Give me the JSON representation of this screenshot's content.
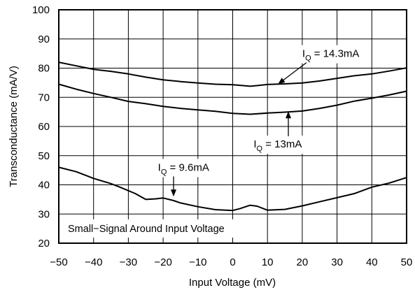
{
  "chart_data": {
    "type": "line",
    "title": "",
    "xlabel": "Input Voltage (mV)",
    "ylabel": "Transconductance (mA/V)",
    "xlim": [
      -50,
      50
    ],
    "ylim": [
      20,
      100
    ],
    "xticks": [
      -50,
      -40,
      -30,
      -20,
      -10,
      0,
      10,
      20,
      30,
      40,
      50
    ],
    "yticks": [
      20,
      30,
      40,
      50,
      60,
      70,
      80,
      90,
      100
    ],
    "grid": true,
    "legend": "none",
    "annotation": "Small−Signal Around Input Voltage",
    "series": [
      {
        "name": "IQ = 14.3mA",
        "color": "#000000",
        "x": [
          -50,
          -45,
          -40,
          -35,
          -30,
          -25,
          -20,
          -15,
          -10,
          -5,
          0,
          3,
          5,
          7,
          10,
          15,
          20,
          25,
          30,
          35,
          40,
          45,
          50
        ],
        "y": [
          82,
          80.8,
          79.6,
          78.9,
          78,
          76.9,
          76,
          75.4,
          74.9,
          74.5,
          74.3,
          74,
          73.8,
          74,
          74.4,
          74.6,
          74.9,
          75.6,
          76.5,
          77.4,
          78,
          79,
          80.1
        ]
      },
      {
        "name": "IQ = 13mA",
        "color": "#000000",
        "x": [
          -50,
          -45,
          -40,
          -35,
          -30,
          -25,
          -20,
          -15,
          -10,
          -5,
          0,
          5,
          10,
          15,
          20,
          25,
          30,
          35,
          40,
          45,
          50
        ],
        "y": [
          74.5,
          72.8,
          71.3,
          70,
          68.6,
          67.8,
          66.9,
          66.2,
          65.7,
          65.2,
          64.5,
          64.2,
          64.6,
          64.9,
          65.3,
          66.2,
          67.3,
          68.7,
          69.7,
          70.8,
          72.1
        ]
      },
      {
        "name": "IQ = 9.6mA",
        "color": "#000000",
        "x": [
          -50,
          -45,
          -40,
          -35,
          -32,
          -28,
          -25,
          -22,
          -20,
          -17,
          -15,
          -10,
          -5,
          0,
          2,
          5,
          7,
          10,
          15,
          20,
          25,
          30,
          35,
          40,
          45,
          50
        ],
        "y": [
          46,
          44.5,
          42.2,
          40.4,
          39,
          37,
          35,
          35.2,
          35.5,
          34.6,
          33.8,
          32.5,
          31.5,
          31.2,
          31.8,
          33,
          32.7,
          31.3,
          31.6,
          32.8,
          34.2,
          35.6,
          37,
          39.2,
          40.6,
          42.5
        ]
      }
    ],
    "labels": [
      {
        "prefix": "I",
        "sub": "Q",
        "suffix": " = 14.3mA",
        "x": 20,
        "y": 83.8,
        "target_x": 13,
        "target_y": 74.5
      },
      {
        "prefix": "I",
        "sub": "Q",
        "suffix": " = 13mA",
        "x": 6,
        "y": 52.8,
        "target_x": 16,
        "target_y": 65.2
      },
      {
        "prefix": "I",
        "sub": "Q",
        "suffix": " = 9.6mA",
        "x": -21.5,
        "y": 44.8,
        "target_x": -17,
        "target_y": 36
      }
    ]
  }
}
